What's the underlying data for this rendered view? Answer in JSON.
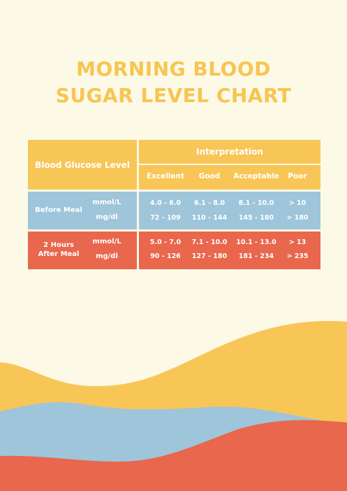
{
  "title": {
    "line1": "MORNING BLOOD",
    "line2": "SUGAR LEVEL CHART"
  },
  "table": {
    "header": {
      "left": "Blood Glucose Level",
      "interpretation": "Interpretation",
      "columns": [
        "Excellent",
        "Good",
        "Acceptable",
        "Poor"
      ]
    },
    "rows": [
      {
        "label": "Before Meal",
        "units": [
          "mmol/L",
          "mg/dl"
        ],
        "values": [
          [
            "4.0 - 6.0",
            "6.1 - 8.0",
            "8.1 - 10.0",
            "> 10"
          ],
          [
            "72 - 109",
            "110 - 144",
            "145 - 180",
            "> 180"
          ]
        ]
      },
      {
        "label": "2 Hours After Meal",
        "label_line1": "2 Hours",
        "label_line2": "After Meal",
        "units": [
          "mmol/L",
          "mg/dl"
        ],
        "values": [
          [
            "5.0 - 7.0",
            "7.1 - 10.0",
            "10.1 - 13.0",
            "> 13"
          ],
          [
            "90 - 126",
            "127 - 180",
            "181 - 234",
            "> 235"
          ]
        ]
      }
    ]
  },
  "colors": {
    "background": "#fcf9e6",
    "yellow": "#f8c657",
    "blue": "#9ec5da",
    "red": "#e8674d"
  }
}
